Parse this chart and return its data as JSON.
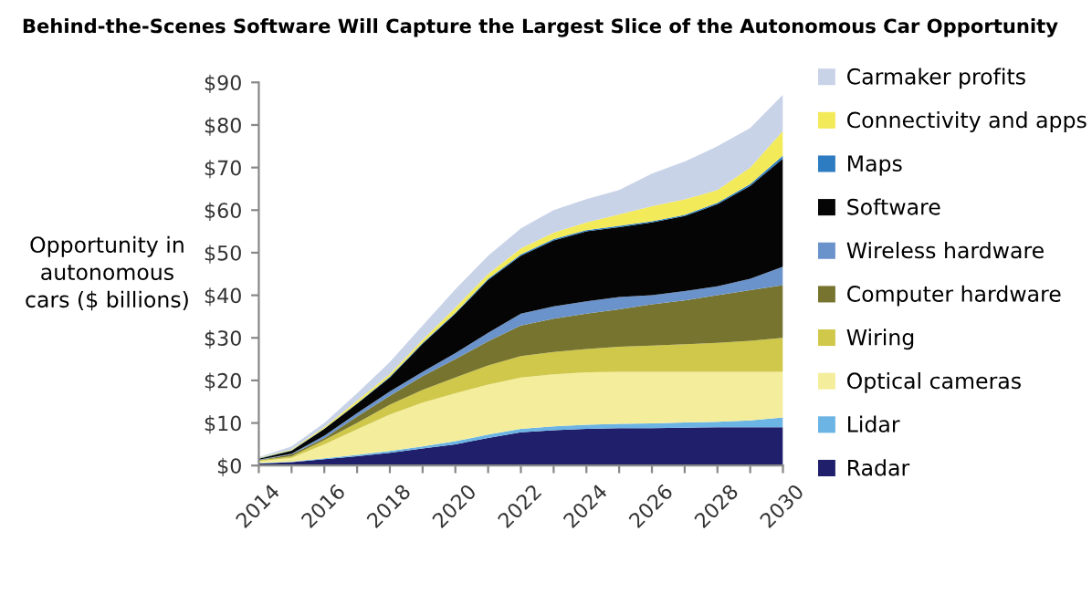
{
  "chart_data": {
    "type": "area",
    "stacked": true,
    "title": "Behind-the-Scenes Software Will Capture the Largest Slice of the Autonomous Car Opportunity",
    "ylabel": "Opportunity in\nautonomous\ncars ($ billions)",
    "x": [
      2014,
      2015,
      2016,
      2017,
      2018,
      2019,
      2020,
      2021,
      2022,
      2023,
      2024,
      2025,
      2026,
      2027,
      2028,
      2029,
      2030
    ],
    "xlim": [
      2014,
      2030
    ],
    "xticks": [
      2014,
      {
        "value": 2015,
        "label": null
      },
      2016,
      {
        "value": 2017,
        "label": null
      },
      2018,
      {
        "value": 2019,
        "label": null
      },
      2020,
      {
        "value": 2021,
        "label": null
      },
      2022,
      {
        "value": 2023,
        "label": null
      },
      2024,
      {
        "value": 2025,
        "label": null
      },
      2026,
      {
        "value": 2027,
        "label": null
      },
      2028,
      {
        "value": 2029,
        "label": null
      },
      2030
    ],
    "ylim": [
      0,
      90
    ],
    "yticks": [
      {
        "value": 0,
        "label": "$0"
      },
      {
        "value": 10,
        "label": "$10"
      },
      {
        "value": 20,
        "label": "$20"
      },
      {
        "value": 30,
        "label": "$30"
      },
      {
        "value": 40,
        "label": "$40"
      },
      {
        "value": 50,
        "label": "$50"
      },
      {
        "value": 60,
        "label": "$60"
      },
      {
        "value": 70,
        "label": "$70"
      },
      {
        "value": 80,
        "label": "$80"
      },
      {
        "value": 90,
        "label": "$90"
      }
    ],
    "grid": false,
    "legend": "right",
    "series": [
      {
        "name": "Radar",
        "color": "#1f1f6b",
        "values": [
          0.5,
          0.8,
          1.5,
          2.2,
          3,
          4,
          5,
          6.5,
          7.8,
          8.3,
          8.6,
          8.8,
          8.8,
          8.9,
          9,
          9,
          9
        ]
      },
      {
        "name": "Lidar",
        "color": "#6cb4e4",
        "values": [
          0.1,
          0.1,
          0.2,
          0.3,
          0.4,
          0.5,
          0.7,
          0.8,
          0.8,
          0.9,
          1.0,
          1.0,
          1.1,
          1.2,
          1.3,
          1.6,
          2.3
        ]
      },
      {
        "name": "Optical cameras",
        "color": "#f4ee9c",
        "values": [
          0.4,
          0.9,
          3.3,
          6.0,
          8.6,
          10.3,
          11.3,
          11.7,
          12.1,
          12.2,
          12.3,
          12.2,
          12.1,
          11.9,
          11.7,
          11.4,
          10.7
        ]
      },
      {
        "name": "Wiring",
        "color": "#cfc84a",
        "values": [
          0.2,
          0.4,
          1.0,
          1.5,
          2.3,
          3.0,
          3.7,
          4.5,
          5.0,
          5.3,
          5.5,
          5.9,
          6.2,
          6.5,
          6.8,
          7.3,
          8.0
        ]
      },
      {
        "name": "Computer hardware",
        "color": "#77742f",
        "values": [
          0.1,
          0.4,
          0.4,
          1.5,
          2.1,
          3.2,
          4.3,
          5.7,
          7.2,
          7.8,
          8.3,
          8.8,
          9.7,
          10.3,
          11.2,
          11.9,
          12.4
        ]
      },
      {
        "name": "Wireless hardware",
        "color": "#6a93cc",
        "values": [
          0.1,
          0.2,
          0.6,
          0.8,
          1.0,
          1.0,
          1.4,
          2.0,
          2.8,
          2.9,
          2.9,
          2.9,
          2.1,
          2.2,
          2.1,
          2.7,
          4.3
        ]
      },
      {
        "name": "Software",
        "color": "#050505",
        "values": [
          0.2,
          0.7,
          1.6,
          2.2,
          3.3,
          6.6,
          9.3,
          12.4,
          13.6,
          15.5,
          16.4,
          16.4,
          17.1,
          17.6,
          19.3,
          21.8,
          25.4
        ]
      },
      {
        "name": "Maps",
        "color": "#2d7cc1",
        "values": [
          0.1,
          0.1,
          0.1,
          0.1,
          0.2,
          0.2,
          0.2,
          0.3,
          0.3,
          0.3,
          0.3,
          0.3,
          0.3,
          0.3,
          0.3,
          0.4,
          0.7
        ]
      },
      {
        "name": "Connectivity and apps",
        "color": "#f3ea5a",
        "values": [
          0.1,
          0.2,
          0.3,
          0.6,
          0.6,
          0.7,
          1.2,
          1.1,
          1.4,
          1.5,
          1.8,
          2.7,
          3.5,
          3.6,
          3.0,
          3.9,
          5.8
        ]
      },
      {
        "name": "Carmaker profits",
        "color": "#c9d3e8",
        "values": [
          0.2,
          0.7,
          1.0,
          1.8,
          2.8,
          3.4,
          4.3,
          4.3,
          4.7,
          5.3,
          5.5,
          5.7,
          7.7,
          8.9,
          10.3,
          9.3,
          8.5
        ]
      }
    ]
  }
}
